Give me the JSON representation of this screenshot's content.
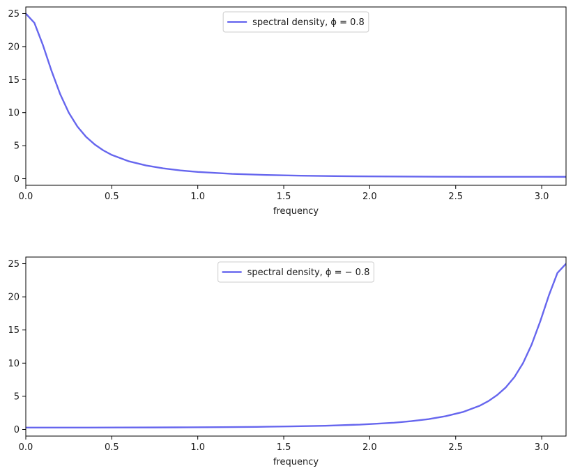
{
  "chart_data": [
    {
      "type": "line",
      "title": "",
      "xlabel": "frequency",
      "ylabel": "",
      "xlim": [
        0,
        3.14159
      ],
      "ylim": [
        -1,
        26
      ],
      "xticks": [
        0.0,
        0.5,
        1.0,
        1.5,
        2.0,
        2.5,
        3.0
      ],
      "xtick_labels": [
        "0.0",
        "0.5",
        "1.0",
        "1.5",
        "2.0",
        "2.5",
        "3.0"
      ],
      "yticks": [
        0,
        5,
        10,
        15,
        20,
        25
      ],
      "ytick_labels": [
        "0",
        "5",
        "10",
        "15",
        "20",
        "25"
      ],
      "legend_position": "upper-center",
      "grid": false,
      "series": [
        {
          "name": "spectral density, ϕ = 0.8",
          "color": "#6666ee",
          "x": [
            0.0,
            0.05,
            0.1,
            0.15,
            0.2,
            0.25,
            0.3,
            0.35,
            0.4,
            0.45,
            0.5,
            0.6,
            0.7,
            0.8,
            0.9,
            1.0,
            1.2,
            1.4,
            1.6,
            1.8,
            2.0,
            2.2,
            2.4,
            2.6,
            2.8,
            3.0,
            3.14159
          ],
          "y": [
            25.0,
            23.6,
            20.2,
            16.3,
            12.8,
            10.0,
            7.9,
            6.35,
            5.2,
            4.3,
            3.6,
            2.63,
            2.0,
            1.56,
            1.25,
            1.02,
            0.73,
            0.56,
            0.46,
            0.39,
            0.35,
            0.32,
            0.3,
            0.29,
            0.285,
            0.28,
            0.278
          ]
        }
      ]
    },
    {
      "type": "line",
      "title": "",
      "xlabel": "frequency",
      "ylabel": "",
      "xlim": [
        0,
        3.14159
      ],
      "ylim": [
        -1,
        26
      ],
      "xticks": [
        0.0,
        0.5,
        1.0,
        1.5,
        2.0,
        2.5,
        3.0
      ],
      "xtick_labels": [
        "0.0",
        "0.5",
        "1.0",
        "1.5",
        "2.0",
        "2.5",
        "3.0"
      ],
      "yticks": [
        0,
        5,
        10,
        15,
        20,
        25
      ],
      "ytick_labels": [
        "0",
        "5",
        "10",
        "15",
        "20",
        "25"
      ],
      "legend_position": "upper-center",
      "grid": false,
      "series": [
        {
          "name": "spectral density, ϕ = − 0.8",
          "color": "#6666ee",
          "x": [
            0.0,
            0.14159,
            0.34159,
            0.54159,
            0.74159,
            0.94159,
            1.14159,
            1.34159,
            1.54159,
            1.74159,
            1.94159,
            2.14159,
            2.24159,
            2.34159,
            2.44159,
            2.54159,
            2.64159,
            2.69159,
            2.74159,
            2.79159,
            2.84159,
            2.89159,
            2.94159,
            2.99159,
            3.04159,
            3.09159,
            3.14159
          ],
          "y": [
            0.278,
            0.28,
            0.285,
            0.29,
            0.3,
            0.32,
            0.35,
            0.39,
            0.46,
            0.56,
            0.73,
            1.02,
            1.25,
            1.56,
            2.0,
            2.63,
            3.6,
            4.3,
            5.2,
            6.35,
            7.9,
            10.0,
            12.8,
            16.3,
            20.2,
            23.6,
            25.0
          ]
        }
      ]
    }
  ]
}
